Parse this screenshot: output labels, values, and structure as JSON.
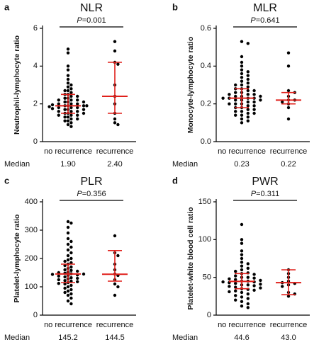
{
  "chart_data": [
    {
      "type": "dotplot",
      "panel": "a",
      "title": "NLR",
      "ylabel": "Neutrophil-lymphocyte ratio",
      "categories": [
        "no recurrence",
        "recurrence"
      ],
      "values": [
        [
          4.9,
          4.7,
          4.0,
          3.8,
          3.5,
          3.3,
          3.1,
          3.0,
          2.9,
          2.8,
          2.7,
          2.7,
          2.6,
          2.5,
          2.5,
          2.4,
          2.4,
          2.3,
          2.3,
          2.2,
          2.2,
          2.2,
          2.1,
          2.1,
          2.1,
          2.0,
          2.0,
          2.0,
          1.95,
          1.9,
          1.9,
          1.9,
          1.9,
          1.85,
          1.8,
          1.8,
          1.8,
          1.75,
          1.7,
          1.7,
          1.7,
          1.6,
          1.6,
          1.6,
          1.5,
          1.5,
          1.5,
          1.4,
          1.4,
          1.4,
          1.3,
          1.3,
          1.2,
          1.2,
          1.1,
          1.1,
          1.0,
          0.9,
          0.8
        ],
        [
          5.3,
          4.8,
          4.2,
          4.1,
          3.0,
          2.4,
          2.0,
          1.5,
          1.2,
          1.0,
          0.9
        ]
      ],
      "medians": [
        1.9,
        2.4
      ],
      "value_labels": [
        "1.90",
        "2.40"
      ],
      "iqr": [
        [
          1.5,
          2.5
        ],
        [
          1.5,
          4.2
        ]
      ],
      "median_label": "Median",
      "annotation": {
        "symbol": "P",
        "text": "=0.001"
      },
      "ylim": [
        0,
        6
      ],
      "yticks": [
        0,
        2,
        4,
        6
      ],
      "color": "#000000",
      "summary_color": "#e0201b"
    },
    {
      "type": "dotplot",
      "panel": "b",
      "title": "MLR",
      "ylabel": "Monocyte-lymphocyte ratio",
      "categories": [
        "no recurrence",
        "recurrence"
      ],
      "values": [
        [
          0.53,
          0.52,
          0.45,
          0.42,
          0.4,
          0.38,
          0.37,
          0.36,
          0.35,
          0.34,
          0.33,
          0.32,
          0.31,
          0.3,
          0.3,
          0.29,
          0.28,
          0.28,
          0.27,
          0.27,
          0.26,
          0.26,
          0.25,
          0.25,
          0.25,
          0.24,
          0.24,
          0.24,
          0.23,
          0.23,
          0.23,
          0.23,
          0.22,
          0.22,
          0.22,
          0.21,
          0.21,
          0.2,
          0.2,
          0.2,
          0.19,
          0.19,
          0.18,
          0.18,
          0.17,
          0.17,
          0.16,
          0.16,
          0.15,
          0.15,
          0.14,
          0.14,
          0.13,
          0.12,
          0.11,
          0.1
        ],
        [
          0.47,
          0.4,
          0.27,
          0.26,
          0.24,
          0.22,
          0.22,
          0.21,
          0.2,
          0.18,
          0.12
        ]
      ],
      "medians": [
        0.23,
        0.22
      ],
      "iqr": [
        [
          0.18,
          0.28
        ],
        [
          0.2,
          0.26
        ]
      ],
      "median_label": "Median",
      "annotation": {
        "symbol": "P",
        "text": "=0.641"
      },
      "ylim": [
        0,
        0.6
      ],
      "yticks": [
        {
          "value": 0,
          "label": "0.0"
        },
        0.2,
        0.4,
        0.6
      ],
      "color": "#000000",
      "summary_color": "#e0201b"
    },
    {
      "type": "dotplot",
      "panel": "c",
      "title": "PLR",
      "ylabel": "Platelet-lymphocyte ratio",
      "categories": [
        "no recurrence",
        "recurrence"
      ],
      "values": [
        [
          330,
          325,
          310,
          290,
          270,
          260,
          250,
          240,
          230,
          220,
          210,
          200,
          195,
          190,
          185,
          180,
          175,
          170,
          165,
          160,
          158,
          155,
          152,
          150,
          148,
          146,
          145,
          144,
          142,
          140,
          138,
          135,
          132,
          130,
          128,
          125,
          122,
          120,
          118,
          115,
          112,
          110,
          105,
          100,
          95,
          90,
          85,
          80,
          75,
          70,
          60,
          50,
          40
        ],
        [
          280,
          220,
          210,
          180,
          160,
          145,
          140,
          125,
          110,
          100,
          70
        ]
      ],
      "medians": [
        145.2,
        144.5
      ],
      "iqr": [
        [
          115,
          180
        ],
        [
          120,
          228
        ]
      ],
      "median_label": "Median",
      "annotation": {
        "symbol": "P",
        "text": "=0.356"
      },
      "ylim": [
        0,
        400
      ],
      "yticks": [
        0,
        100,
        200,
        300,
        400
      ],
      "color": "#000000",
      "summary_color": "#e0201b"
    },
    {
      "type": "dotplot",
      "panel": "d",
      "title": "PWR",
      "ylabel": "Platelet-white blood cell ratio",
      "categories": [
        "no recurrence",
        "recurrence"
      ],
      "values": [
        [
          120,
          100,
          95,
          85,
          80,
          75,
          70,
          68,
          65,
          62,
          60,
          58,
          56,
          55,
          54,
          52,
          50,
          50,
          49,
          48,
          47,
          46,
          45,
          45,
          44,
          44,
          43,
          42,
          41,
          40,
          40,
          39,
          38,
          37,
          36,
          35,
          34,
          33,
          32,
          31,
          30,
          28,
          26,
          24,
          22,
          20,
          18,
          15,
          12,
          10
        ],
        [
          60,
          55,
          50,
          45,
          42,
          43,
          40,
          38,
          30,
          28,
          25
        ]
      ],
      "medians": [
        44.6,
        43
      ],
      "value_labels": [
        "44.6",
        "43.0"
      ],
      "iqr": [
        [
          35,
          55
        ],
        [
          27,
          60
        ]
      ],
      "median_label": "Median",
      "annotation": {
        "symbol": "P",
        "text": "=0.311"
      },
      "ylim": [
        0,
        150
      ],
      "yticks": [
        0,
        50,
        100,
        150
      ],
      "color": "#000000",
      "summary_color": "#e0201b"
    }
  ]
}
